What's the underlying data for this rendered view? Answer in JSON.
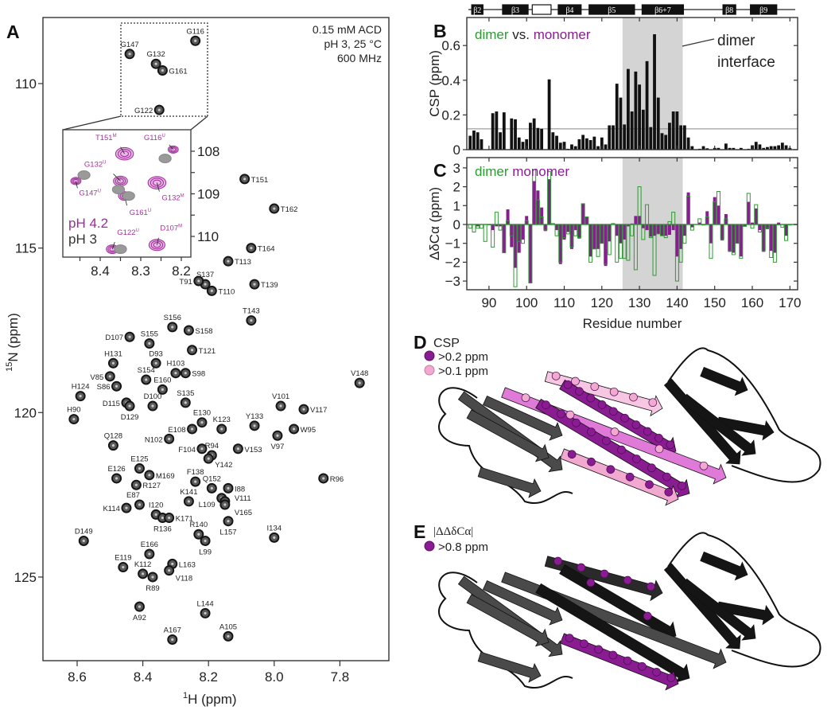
{
  "colors": {
    "dimer": "#2f9a33",
    "monomer": "#8a1c92",
    "purple_peak": "#a5329f",
    "gray_peak": "#8a8a8a",
    "shade": "#d4d4d4",
    "pink": "#f2a9cf"
  },
  "panel_a": {
    "letter": "A",
    "conditions": [
      "0.15 mM ACD",
      "pH 3, 25 °C",
      "600 MHz"
    ],
    "xlabel_sup": "1",
    "xlabel": "H (ppm)",
    "ylabel_sup": "15",
    "ylabel": "N (ppm)",
    "inset_legend": [
      "pH 4.2",
      "pH 3"
    ]
  },
  "panel_b": {
    "letter": "B",
    "legend": [
      "dimer",
      " vs. ",
      "monomer"
    ],
    "annotation": [
      "dimer",
      "interface"
    ],
    "ylabel": "CSP (ppm)"
  },
  "panel_c": {
    "letter": "C",
    "legend": [
      "dimer",
      " monomer"
    ],
    "ylabel": "ΔδCα (ppm)",
    "xlabel": "Residue number"
  },
  "panel_d": {
    "letter": "D",
    "legend_title": "CSP",
    "legend": [
      ">0.2 ppm",
      ">0.1 ppm"
    ]
  },
  "panel_e": {
    "letter": "E",
    "legend_title": "|ΔΔδCα|",
    "legend": [
      ">0.8 ppm"
    ]
  },
  "secondary_structure": [
    {
      "label": "β2",
      "start": 85.4,
      "end": 88.4
    },
    {
      "label": "β3",
      "start": 93.6,
      "end": 100.4
    },
    {
      "label": "",
      "start": 101.5,
      "end": 106.5,
      "open": true
    },
    {
      "label": "β4",
      "start": 108.4,
      "end": 114.5
    },
    {
      "label": "β5",
      "start": 116.6,
      "end": 128.7
    },
    {
      "label": "β6+7",
      "start": 130.7,
      "end": 141.7
    },
    {
      "label": "β8",
      "start": 152.2,
      "end": 155.6
    },
    {
      "label": "β9",
      "start": 159.5,
      "end": 166.5
    }
  ],
  "chart_data": [
    {
      "id": "hsqc",
      "type": "scatter",
      "title": "",
      "xlabel": "1H (ppm)",
      "ylabel": "15N (ppm)",
      "xlim": [
        8.7,
        7.65
      ],
      "ylim": [
        108.0,
        127.5
      ],
      "xticks": [
        8.6,
        8.4,
        8.2,
        8.0,
        7.8
      ],
      "yticks": [
        110,
        115,
        120,
        125
      ],
      "points": [
        {
          "label": "G116",
          "h": 8.24,
          "n": 108.7
        },
        {
          "label": "G147",
          "h": 8.44,
          "n": 109.1
        },
        {
          "label": "G132",
          "h": 8.36,
          "n": 109.4
        },
        {
          "label": "G161",
          "h": 8.34,
          "n": 109.6
        },
        {
          "label": "G122",
          "h": 8.35,
          "n": 110.8
        },
        {
          "label": "T151",
          "h": 8.09,
          "n": 112.9
        },
        {
          "label": "T162",
          "h": 8.0,
          "n": 113.8
        },
        {
          "label": "T164",
          "h": 8.07,
          "n": 115.0
        },
        {
          "label": "T113",
          "h": 8.14,
          "n": 115.4
        },
        {
          "label": "S137",
          "h": 8.21,
          "n": 116.1
        },
        {
          "label": "T110",
          "h": 8.19,
          "n": 116.3
        },
        {
          "label": "T91",
          "h": 8.23,
          "n": 116.0
        },
        {
          "label": "T139",
          "h": 8.06,
          "n": 116.1
        },
        {
          "label": "T143",
          "h": 8.07,
          "n": 117.2
        },
        {
          "label": "V148",
          "h": 7.74,
          "n": 119.1
        },
        {
          "label": "V101",
          "h": 7.98,
          "n": 119.8
        },
        {
          "label": "V117",
          "h": 7.91,
          "n": 119.9
        },
        {
          "label": "Y133",
          "h": 8.06,
          "n": 120.4
        },
        {
          "label": "K123",
          "h": 8.16,
          "n": 120.5
        },
        {
          "label": "E130",
          "h": 8.22,
          "n": 120.3
        },
        {
          "label": "E108",
          "h": 8.25,
          "n": 120.5
        },
        {
          "label": "W95",
          "h": 7.94,
          "n": 120.5
        },
        {
          "label": "V97",
          "h": 7.99,
          "n": 120.7
        },
        {
          "label": "V153",
          "h": 8.11,
          "n": 121.1
        },
        {
          "label": "R94",
          "h": 8.19,
          "n": 121.3
        },
        {
          "label": "Y142",
          "h": 8.2,
          "n": 121.4
        },
        {
          "label": "F104",
          "h": 8.22,
          "n": 121.1
        },
        {
          "label": "R96",
          "h": 7.85,
          "n": 122.0
        },
        {
          "label": "S158",
          "h": 8.26,
          "n": 117.5
        },
        {
          "label": "T121",
          "h": 8.25,
          "n": 118.1
        },
        {
          "label": "S98",
          "h": 8.27,
          "n": 118.8
        },
        {
          "label": "S135",
          "h": 8.27,
          "n": 119.7
        },
        {
          "label": "D107",
          "h": 8.44,
          "n": 117.7
        },
        {
          "label": "S156",
          "h": 8.31,
          "n": 117.4
        },
        {
          "label": "S155",
          "h": 8.38,
          "n": 117.9
        },
        {
          "label": "H131",
          "h": 8.49,
          "n": 118.5
        },
        {
          "label": "D93",
          "h": 8.36,
          "n": 118.5
        },
        {
          "label": "H103",
          "h": 8.3,
          "n": 118.8
        },
        {
          "label": "V85",
          "h": 8.5,
          "n": 118.9
        },
        {
          "label": "S86",
          "h": 8.48,
          "n": 119.2
        },
        {
          "label": "S154",
          "h": 8.39,
          "n": 119.0
        },
        {
          "label": "E160",
          "h": 8.34,
          "n": 119.3
        },
        {
          "label": "H124",
          "h": 8.59,
          "n": 119.5
        },
        {
          "label": "D115",
          "h": 8.45,
          "n": 119.7
        },
        {
          "label": "D129",
          "h": 8.44,
          "n": 119.8
        },
        {
          "label": "D100",
          "h": 8.37,
          "n": 119.8
        },
        {
          "label": "H90",
          "h": 8.61,
          "n": 120.2
        },
        {
          "label": "Q128",
          "h": 8.49,
          "n": 121.0
        },
        {
          "label": "N102",
          "h": 8.32,
          "n": 120.8
        },
        {
          "label": "E125",
          "h": 8.41,
          "n": 121.7
        },
        {
          "label": "M169",
          "h": 8.38,
          "n": 121.9
        },
        {
          "label": "E126",
          "h": 8.48,
          "n": 122.0
        },
        {
          "label": "R127",
          "h": 8.42,
          "n": 122.2
        },
        {
          "label": "F138",
          "h": 8.24,
          "n": 122.1
        },
        {
          "label": "Q152",
          "h": 8.19,
          "n": 122.3
        },
        {
          "label": "I88",
          "h": 8.14,
          "n": 122.3
        },
        {
          "label": "K141",
          "h": 8.26,
          "n": 122.7
        },
        {
          "label": "L109",
          "h": 8.16,
          "n": 122.6
        },
        {
          "label": "V111",
          "h": 8.15,
          "n": 122.7
        },
        {
          "label": "V165",
          "h": 8.15,
          "n": 122.8
        },
        {
          "label": "E87",
          "h": 8.41,
          "n": 122.8
        },
        {
          "label": "K114",
          "h": 8.45,
          "n": 122.9
        },
        {
          "label": "I120",
          "h": 8.36,
          "n": 123.1
        },
        {
          "label": "R136",
          "h": 8.34,
          "n": 123.2
        },
        {
          "label": "K171",
          "h": 8.32,
          "n": 123.2
        },
        {
          "label": "L157",
          "h": 8.14,
          "n": 123.3
        },
        {
          "label": "R140",
          "h": 8.23,
          "n": 123.7
        },
        {
          "label": "D149",
          "h": 8.58,
          "n": 123.9
        },
        {
          "label": "I134",
          "h": 8.0,
          "n": 123.8
        },
        {
          "label": "L99",
          "h": 8.21,
          "n": 123.9
        },
        {
          "label": "E166",
          "h": 8.38,
          "n": 124.3
        },
        {
          "label": "L163",
          "h": 8.31,
          "n": 124.6
        },
        {
          "label": "E119",
          "h": 8.46,
          "n": 124.7
        },
        {
          "label": "K112",
          "h": 8.4,
          "n": 124.9
        },
        {
          "label": "V118",
          "h": 8.32,
          "n": 124.8
        },
        {
          "label": "R89",
          "h": 8.37,
          "n": 125.0
        },
        {
          "label": "A92",
          "h": 8.41,
          "n": 125.9
        },
        {
          "label": "L144",
          "h": 8.21,
          "n": 126.1
        },
        {
          "label": "A167",
          "h": 8.31,
          "n": 126.9
        },
        {
          "label": "A105",
          "h": 8.14,
          "n": 126.8
        }
      ]
    },
    {
      "id": "hsqc-inset",
      "type": "scatter",
      "title": "",
      "xlim": [
        8.49,
        8.18
      ],
      "ylim": [
        107.5,
        110.5
      ],
      "xticks": [
        8.4,
        8.3,
        8.2
      ],
      "yticks": [
        108,
        109,
        110
      ],
      "legend": [
        "pH 4.2",
        "pH 3"
      ],
      "peaks": [
        {
          "label": "T151",
          "sup": "M",
          "h": 8.34,
          "n": 108.06,
          "condition": "pH 4.2",
          "size": 3
        },
        {
          "label": "G116",
          "sup": "U",
          "h": 8.22,
          "n": 107.96,
          "condition": "pH 4.2",
          "size": 1
        },
        {
          "label": "G147",
          "sup": "U",
          "h": 8.46,
          "n": 108.7,
          "condition": "pH 4.2",
          "size": 1
        },
        {
          "label": "G132",
          "sup": "U",
          "h": 8.35,
          "n": 108.7,
          "condition": "pH 4.2",
          "size": 2
        },
        {
          "label": "G161",
          "sup": "U",
          "h": 8.34,
          "n": 109.05,
          "condition": "pH 4.2",
          "size": 1.5
        },
        {
          "label": "G132",
          "sup": "M",
          "h": 8.26,
          "n": 108.74,
          "condition": "pH 4.2",
          "size": 3
        },
        {
          "label": "G122",
          "sup": "U",
          "h": 8.37,
          "n": 110.3,
          "condition": "pH 4.2",
          "size": 1.5
        },
        {
          "label": "D107",
          "sup": "M",
          "h": 8.26,
          "n": 110.2,
          "condition": "pH 4.2",
          "size": 2.5
        },
        {
          "label": "",
          "sup": "",
          "h": 8.24,
          "n": 108.17,
          "condition": "pH 3",
          "size": 1.5
        },
        {
          "label": "",
          "sup": "",
          "h": 8.44,
          "n": 108.56,
          "condition": "pH 3",
          "size": 1.5
        },
        {
          "label": "",
          "sup": "",
          "h": 8.355,
          "n": 108.9,
          "condition": "pH 3",
          "size": 1.5
        },
        {
          "label": "",
          "sup": "",
          "h": 8.33,
          "n": 109.05,
          "condition": "pH 3",
          "size": 1.5
        },
        {
          "label": "",
          "sup": "",
          "h": 8.35,
          "n": 110.3,
          "condition": "pH 3",
          "size": 1.5
        }
      ]
    },
    {
      "id": "csp",
      "type": "bar",
      "title": "",
      "xlabel": "Residue number",
      "ylabel": "CSP (ppm)",
      "xlim": [
        84.1,
        172.1
      ],
      "ylim": [
        0,
        0.76
      ],
      "xticks": [
        90,
        100,
        110,
        120,
        130,
        140,
        150,
        160,
        170
      ],
      "yticks": [
        0,
        0.2,
        0.4,
        0.6
      ],
      "ytick_labels": [
        "0",
        "0.2",
        "0.4",
        "0.6"
      ],
      "threshold": 0.12,
      "shaded_region": [
        125.5,
        141.5
      ],
      "shaded_label": "dimer interface",
      "residue_start": 85,
      "values": [
        0.08,
        0.11,
        0.1,
        0.06,
        null,
        null,
        0.21,
        0.22,
        0.1,
        0.215,
        null,
        0.18,
        0.175,
        0.07,
        0.045,
        0.06,
        0.155,
        0.18,
        0.125,
        0.12,
        null,
        0.405,
        0.1,
        0.08,
        0.04,
        0.045,
        0.005,
        0.03,
        0.02,
        0.06,
        0.085,
        0.065,
        0.055,
        0.075,
        0.02,
        0.07,
        0.03,
        0.14,
        0.14,
        0.38,
        0.3,
        0.145,
        0.465,
        0.22,
        0.45,
        0.375,
        0.23,
        0.51,
        0.13,
        0.665,
        0.3,
        0.095,
        0.085,
        0.155,
        0.22,
        0.22,
        0.14,
        0.14,
        0.07,
        0.02,
        0,
        0.005,
        0.02,
        0.008,
        0,
        0.01,
        0.01,
        0,
        0.035,
        0.01,
        0.01,
        0,
        0.01,
        0,
        0.005,
        0.025,
        0.045,
        0.03,
        0.01,
        0.015,
        0.02,
        0.02,
        0.025,
        0.04,
        0.025,
        0.01
      ]
    },
    {
      "id": "delta-ca",
      "type": "bar",
      "title": "",
      "xlabel": "Residue number",
      "ylabel": "ΔδCα (ppm)",
      "xlim": [
        84.1,
        172.1
      ],
      "ylim": [
        -3.46,
        3.55
      ],
      "xticks": [
        90,
        100,
        110,
        120,
        130,
        140,
        150,
        160,
        170
      ],
      "yticks": [
        3,
        2,
        1,
        0,
        -1,
        -2,
        -3
      ],
      "ytick_labels": [
        "3",
        "2",
        "1",
        "0",
        "−1",
        "−2",
        "−3"
      ],
      "shaded_region": [
        125.5,
        141.5
      ],
      "residue_start": 85,
      "series": [
        {
          "name": "monomer",
          "style": "filled",
          "values": [
            0,
            0,
            -0.1,
            0,
            0,
            0,
            -0.3,
            -0.1,
            -0.1,
            -1.5,
            0.8,
            -1.2,
            -2.3,
            -1.5,
            -0.8,
            0.45,
            -3.1,
            2.3,
            1.8,
            0.9,
            -0.35,
            2.4,
            0,
            -0.3,
            -2.1,
            -0.8,
            -0.4,
            -1.3,
            -0.3,
            -0.75,
            1.1,
            0.4,
            -1.7,
            -1.3,
            -1.3,
            -1.0,
            -2.2,
            -0.9,
            0,
            -0.6,
            -1.0,
            -0.8,
            -0.1,
            0.05,
            0.45,
            0.45,
            -0.2,
            -0.3,
            -0.65,
            -0.6,
            -0.5,
            -0.6,
            -0.6,
            -0.55,
            -0.3,
            -1.7,
            -1.3,
            -0.6,
            1.7,
            -0.15,
            null,
            0.1,
            -0.05,
            0.7,
            -1.0,
            1.45,
            1.0,
            -0.85,
            0.55,
            -1.45,
            -1.5,
            -1.0,
            -1.7,
            -0.1,
            1.2,
            0.1,
            0.85,
            -0.3,
            -1.45,
            -0.25,
            -1.4,
            -1.5,
            0.1,
            0,
            -0.6,
            -0.05
          ]
        },
        {
          "name": "dimer",
          "style": "open",
          "values": [
            -0.2,
            -0.4,
            -0.2,
            -0.2,
            -0.9,
            0,
            -1.2,
            0.65,
            -0.3,
            -1.5,
            0.2,
            -0.6,
            -3.3,
            -0.9,
            -1.0,
            0.2,
            -3.1,
            2.9,
            1.3,
            0.4,
            -0.3,
            2.8,
            0.05,
            -0.6,
            -2.0,
            -0.7,
            -0.5,
            -1.2,
            -0.6,
            -0.7,
            1.1,
            0.4,
            -2.0,
            -1.3,
            -1.7,
            -1.0,
            -2.1,
            -1.6,
            0.05,
            -2.0,
            -1.8,
            -1.8,
            -1.9,
            -0.6,
            -2.4,
            2.0,
            -0.8,
            1.05,
            -0.7,
            -2.7,
            -0.5,
            -0.6,
            -0.7,
            0.15,
            0.65,
            -3.0,
            -2.0,
            -1.0,
            1.5,
            -0.3,
            null,
            0.3,
            0,
            0.4,
            -1.8,
            1.2,
            1.75,
            -0.8,
            0.3,
            -1.4,
            -1.6,
            -1.0,
            -1.8,
            -0.1,
            1.65,
            -0.2,
            1.05,
            -0.4,
            -1.4,
            -0.2,
            -1.75,
            -2.0,
            0,
            -0.15,
            -0.85,
            0
          ]
        }
      ]
    }
  ]
}
